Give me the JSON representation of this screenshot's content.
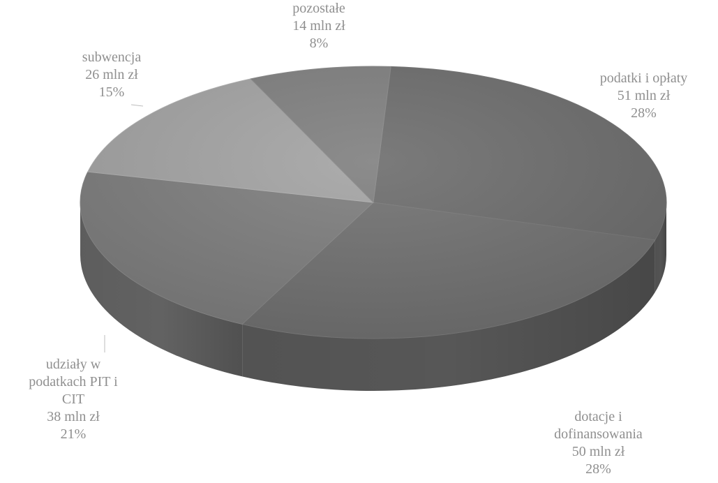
{
  "chart_data": {
    "type": "pie",
    "slices": [
      {
        "key": "podatki",
        "name_lines": [
          "podatki i opłaty"
        ],
        "value_label": "51 mln zł",
        "value": 51,
        "percent": "28%",
        "color": "#6c6c6c"
      },
      {
        "key": "dotacje",
        "name_lines": [
          "dotacje i",
          "dofinansowania"
        ],
        "value_label": "50 mln zł",
        "value": 50,
        "percent": "28%",
        "color": "#707070"
      },
      {
        "key": "udzialy",
        "name_lines": [
          "udziały w",
          "podatkach PIT i",
          "CIT"
        ],
        "value_label": "38 mln zł",
        "value": 38,
        "percent": "21%",
        "color": "#7d7d7d"
      },
      {
        "key": "subwencja",
        "name_lines": [
          "subwencja"
        ],
        "value_label": "26 mln zł",
        "value": 26,
        "percent": "15%",
        "color": "#a3a3a3"
      },
      {
        "key": "pozostale",
        "name_lines": [
          "pozostałe"
        ],
        "value_label": "14 mln zł",
        "value": 14,
        "percent": "8%",
        "color": "#7f7f7f"
      }
    ],
    "style": "3d-pie"
  }
}
